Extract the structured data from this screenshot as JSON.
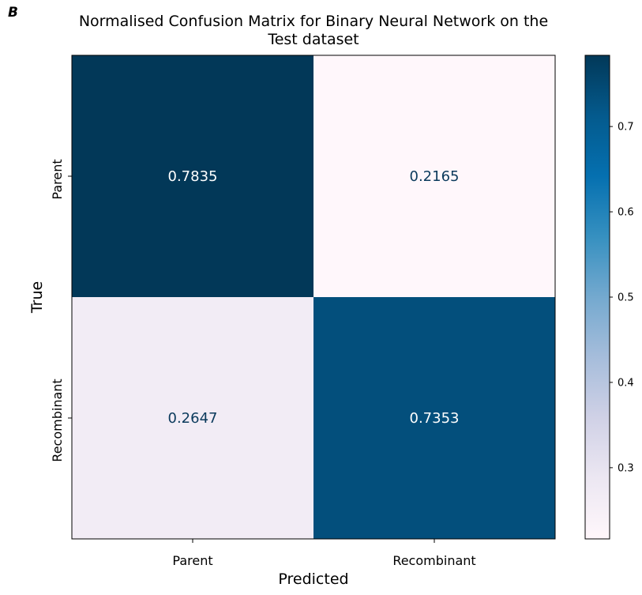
{
  "panel_label": "B",
  "chart_data": {
    "type": "heatmap",
    "title": "Normalised Confusion Matrix for Binary Neural Network on the Test dataset",
    "title_lines": [
      "Normalised Confusion Matrix for Binary Neural Network on the",
      "Test dataset"
    ],
    "xlabel": "Predicted",
    "ylabel": "True",
    "x_categories": [
      "Parent",
      "Recombinant"
    ],
    "y_categories": [
      "Parent",
      "Recombinant"
    ],
    "values": [
      [
        0.7835,
        0.2165
      ],
      [
        0.2647,
        0.7353
      ]
    ],
    "value_labels": [
      [
        "0.7835",
        "0.2165"
      ],
      [
        "0.2647",
        "0.7353"
      ]
    ],
    "colormap": "PuBu",
    "colorbar": {
      "range": [
        0.2165,
        0.7835
      ],
      "ticks": [
        0.3,
        0.4,
        0.5,
        0.6,
        0.7
      ],
      "tick_labels": [
        "0.3",
        "0.4",
        "0.5",
        "0.6",
        "0.7"
      ]
    },
    "annotation_color": "#0b3a5c",
    "grid": false
  }
}
